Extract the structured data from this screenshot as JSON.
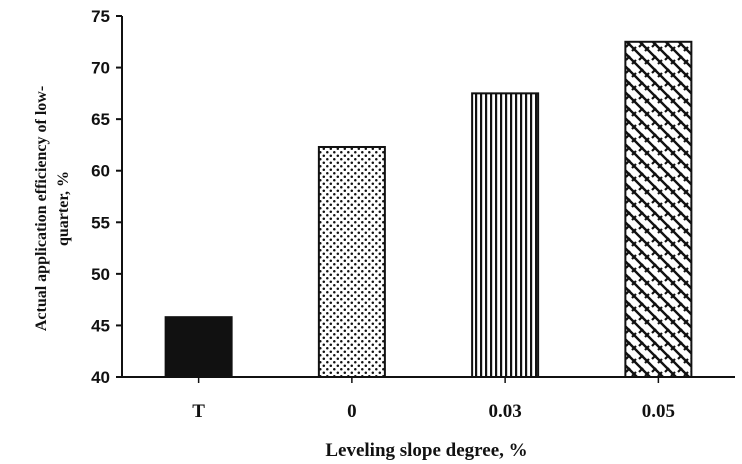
{
  "chart_data": {
    "type": "bar",
    "categories": [
      "T",
      "0",
      "0.03",
      "0.05"
    ],
    "values": [
      45.8,
      62.3,
      67.5,
      72.5
    ],
    "xlabel": "Leveling slope degree, %",
    "ylabel_lines": [
      "Actual application efficiency of low-",
      "quarter, %"
    ],
    "ylim": [
      40,
      75
    ],
    "yticks": [
      40,
      45,
      50,
      55,
      60,
      65,
      70,
      75
    ],
    "bar_patterns": [
      "solid",
      "dots",
      "vertical-stripes",
      "weave"
    ],
    "grid": false,
    "legend": "none"
  }
}
